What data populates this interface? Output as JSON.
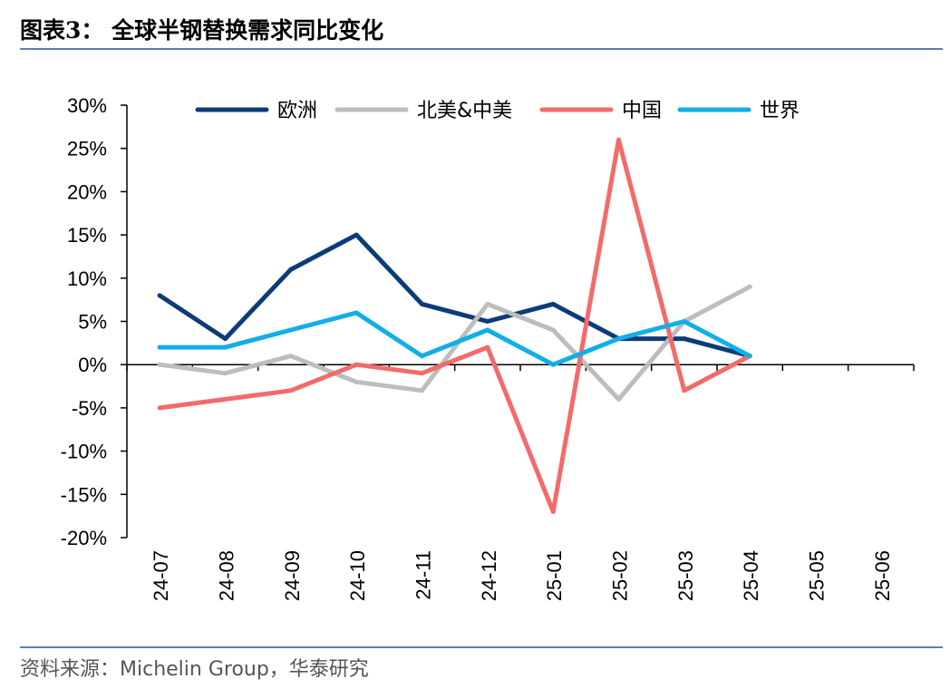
{
  "header": {
    "title": "图表3：   全球半钢替换需求同比变化"
  },
  "footer": {
    "source": "资料来源：Michelin Group，华泰研究"
  },
  "colors": {
    "rule": "#5b7fb3"
  },
  "chart_data": {
    "type": "line",
    "title": "",
    "xlabel": "",
    "ylabel": "",
    "categories": [
      "24-07",
      "24-08",
      "24-09",
      "24-10",
      "24-11",
      "24-12",
      "25-01",
      "25-02",
      "25-03",
      "25-04",
      "25-05",
      "25-06"
    ],
    "ylim": [
      -20,
      30
    ],
    "yticks": [
      30,
      25,
      20,
      15,
      10,
      5,
      0,
      -5,
      -10,
      -15,
      -20
    ],
    "ytick_labels": [
      "30%",
      "25%",
      "20%",
      "15%",
      "10%",
      "5%",
      "0%",
      "-5%",
      "-10%",
      "-15%",
      "-20%"
    ],
    "y_unit": "%",
    "grid": false,
    "legend_position": "top",
    "series": [
      {
        "name": "欧洲",
        "color": "#0c3c78",
        "values": [
          8,
          3,
          11,
          15,
          7,
          5,
          7,
          3,
          3,
          1,
          null,
          null
        ]
      },
      {
        "name": "北美&中美",
        "color": "#bdbdbd",
        "values": [
          0,
          -1,
          1,
          -2,
          -3,
          7,
          4,
          -4,
          5,
          9,
          null,
          null
        ]
      },
      {
        "name": "中国",
        "color": "#f26b6b",
        "values": [
          -5,
          -4,
          -3,
          0,
          -1,
          2,
          -17,
          26,
          -3,
          1,
          null,
          null
        ]
      },
      {
        "name": "世界",
        "color": "#12aee8",
        "values": [
          2,
          2,
          4,
          6,
          1,
          4,
          0,
          3,
          5,
          1,
          null,
          null
        ]
      }
    ]
  }
}
